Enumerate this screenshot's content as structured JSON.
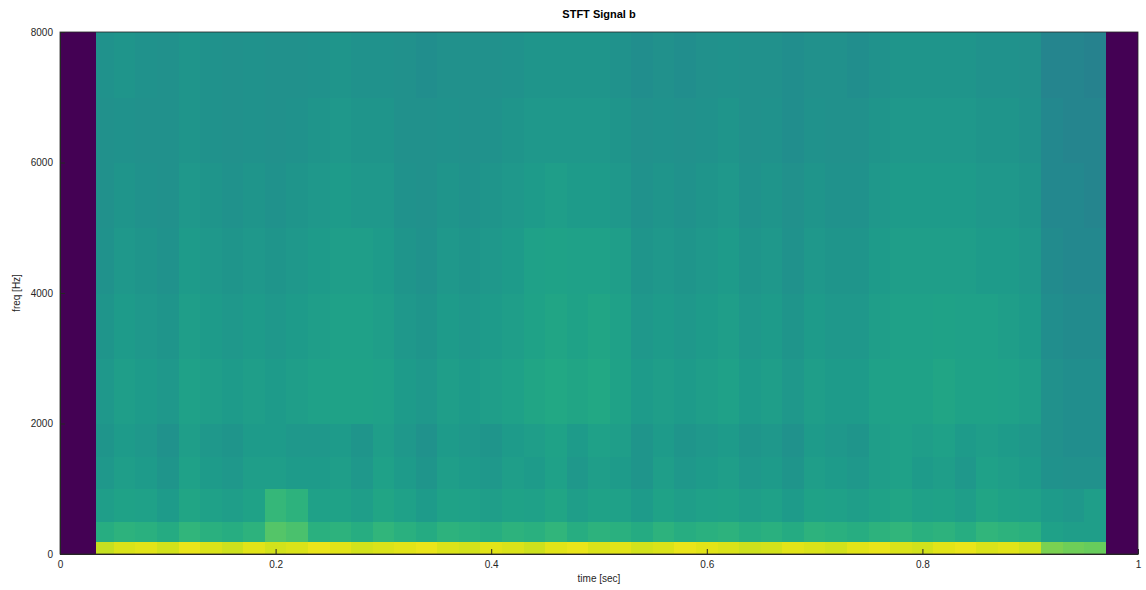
{
  "chart_data": {
    "type": "heatmap",
    "title": "STFT Signal b",
    "x_label": "time [sec]",
    "y_label": "freq [Hz]",
    "color": "viridis",
    "xlim": [
      0,
      1
    ],
    "ylim": [
      0,
      8000
    ],
    "xticks": [
      0,
      0.2,
      0.4,
      0.6,
      0.8,
      1
    ],
    "yticks": [
      0,
      2000,
      4000,
      6000,
      8000
    ],
    "zlim": [
      -100,
      -10
    ],
    "x_edges": [
      0,
      0.033,
      0.05,
      0.07,
      0.09,
      0.11,
      0.13,
      0.15,
      0.17,
      0.19,
      0.21,
      0.23,
      0.25,
      0.27,
      0.29,
      0.31,
      0.33,
      0.35,
      0.37,
      0.39,
      0.41,
      0.43,
      0.45,
      0.47,
      0.49,
      0.51,
      0.53,
      0.55,
      0.57,
      0.59,
      0.61,
      0.63,
      0.65,
      0.67,
      0.69,
      0.71,
      0.73,
      0.75,
      0.77,
      0.79,
      0.81,
      0.83,
      0.85,
      0.87,
      0.89,
      0.91,
      0.93,
      0.95,
      0.97,
      1
    ],
    "y_edges": [
      0,
      200,
      500,
      1000,
      1500,
      2000,
      3000,
      4000,
      5000,
      6000,
      7000,
      8000
    ],
    "cells": [
      [
        -100,
        -18,
        -15,
        -14,
        -16,
        -13,
        -15,
        -17,
        -14,
        -16,
        -15,
        -13,
        -14,
        -16,
        -15,
        -14,
        -13,
        -15,
        -16,
        -14,
        -15,
        -17,
        -14,
        -13,
        -15,
        -14,
        -16,
        -15,
        -13,
        -14,
        -15,
        -17,
        -16,
        -14,
        -15,
        -16,
        -14,
        -13,
        -15,
        -16,
        -14,
        -13,
        -15,
        -14,
        -16,
        -28,
        -30,
        -31,
        -100
      ],
      [
        -100,
        -44,
        -42,
        -43,
        -45,
        -41,
        -43,
        -44,
        -42,
        -34,
        -36,
        -43,
        -42,
        -44,
        -41,
        -43,
        -45,
        -42,
        -43,
        -44,
        -42,
        -43,
        -41,
        -44,
        -42,
        -43,
        -45,
        -42,
        -44,
        -43,
        -42,
        -44,
        -43,
        -45,
        -42,
        -43,
        -44,
        -42,
        -41,
        -43,
        -42,
        -44,
        -41,
        -42,
        -43,
        -49,
        -50,
        -50,
        -100
      ],
      [
        -100,
        -50,
        -48,
        -49,
        -51,
        -47,
        -49,
        -50,
        -48,
        -40,
        -42,
        -49,
        -48,
        -50,
        -47,
        -49,
        -51,
        -48,
        -49,
        -50,
        -48,
        -49,
        -47,
        -50,
        -48,
        -49,
        -51,
        -48,
        -50,
        -49,
        -48,
        -50,
        -49,
        -51,
        -48,
        -49,
        -50,
        -48,
        -47,
        -49,
        -48,
        -50,
        -47,
        -48,
        -49,
        -51,
        -52,
        -50,
        -100
      ],
      [
        -100,
        -52,
        -50,
        -51,
        -53,
        -49,
        -51,
        -52,
        -50,
        -50,
        -51,
        -51,
        -50,
        -52,
        -49,
        -51,
        -53,
        -50,
        -51,
        -52,
        -50,
        -51,
        -49,
        -52,
        -50,
        -51,
        -53,
        -50,
        -52,
        -51,
        -50,
        -52,
        -51,
        -53,
        -50,
        -51,
        -52,
        -50,
        -49,
        -51,
        -50,
        -52,
        -49,
        -50,
        -51,
        -54,
        -55,
        -55,
        -100
      ],
      [
        -100,
        -53,
        -51,
        -52,
        -54,
        -50,
        -52,
        -53,
        -51,
        -51,
        -52,
        -52,
        -51,
        -53,
        -50,
        -52,
        -54,
        -51,
        -52,
        -53,
        -51,
        -50,
        -48,
        -51,
        -49,
        -50,
        -53,
        -51,
        -53,
        -52,
        -51,
        -53,
        -52,
        -54,
        -51,
        -52,
        -53,
        -50,
        -49,
        -50,
        -49,
        -51,
        -50,
        -51,
        -52,
        -55,
        -56,
        -56,
        -100
      ],
      [
        -100,
        -52,
        -50,
        -51,
        -52,
        -49,
        -50,
        -51,
        -50,
        -51,
        -50,
        -49,
        -48,
        -48,
        -49,
        -51,
        -52,
        -50,
        -51,
        -50,
        -49,
        -47,
        -46,
        -47,
        -46,
        -48,
        -51,
        -50,
        -51,
        -50,
        -49,
        -51,
        -50,
        -52,
        -50,
        -51,
        -51,
        -49,
        -48,
        -48,
        -47,
        -48,
        -48,
        -49,
        -50,
        -55,
        -56,
        -56,
        -100
      ],
      [
        -100,
        -53,
        -51,
        -52,
        -53,
        -50,
        -51,
        -52,
        -51,
        -52,
        -51,
        -50,
        -49,
        -49,
        -50,
        -52,
        -53,
        -51,
        -52,
        -51,
        -50,
        -48,
        -47,
        -48,
        -47,
        -49,
        -52,
        -51,
        -52,
        -51,
        -50,
        -52,
        -51,
        -53,
        -51,
        -52,
        -52,
        -50,
        -49,
        -49,
        -48,
        -49,
        -49,
        -50,
        -51,
        -56,
        -57,
        -57,
        -100
      ],
      [
        -100,
        -54,
        -52,
        -53,
        -54,
        -51,
        -52,
        -53,
        -52,
        -53,
        -52,
        -51,
        -50,
        -50,
        -51,
        -53,
        -54,
        -52,
        -53,
        -52,
        -51,
        -49,
        -48,
        -49,
        -49,
        -50,
        -53,
        -52,
        -53,
        -52,
        -51,
        -53,
        -52,
        -54,
        -52,
        -53,
        -53,
        -51,
        -50,
        -50,
        -50,
        -50,
        -51,
        -51,
        -52,
        -57,
        -58,
        -58,
        -100
      ],
      [
        -100,
        -55,
        -53,
        -54,
        -55,
        -52,
        -53,
        -54,
        -53,
        -54,
        -53,
        -52,
        -51,
        -52,
        -52,
        -54,
        -55,
        -53,
        -54,
        -53,
        -52,
        -51,
        -50,
        -51,
        -51,
        -52,
        -54,
        -53,
        -54,
        -53,
        -52,
        -54,
        -53,
        -55,
        -53,
        -54,
        -54,
        -52,
        -51,
        -51,
        -51,
        -51,
        -52,
        -52,
        -53,
        -58,
        -58,
        -59,
        -100
      ],
      [
        -100,
        -55,
        -54,
        -55,
        -55,
        -53,
        -54,
        -55,
        -54,
        -55,
        -54,
        -53,
        -52,
        -53,
        -53,
        -55,
        -55,
        -54,
        -55,
        -54,
        -53,
        -52,
        -52,
        -52,
        -52,
        -53,
        -55,
        -54,
        -55,
        -54,
        -53,
        -55,
        -54,
        -56,
        -54,
        -55,
        -55,
        -53,
        -52,
        -52,
        -52,
        -52,
        -53,
        -53,
        -54,
        -58,
        -59,
        -59,
        -100
      ],
      [
        -100,
        -54,
        -53,
        -54,
        -55,
        -53,
        -54,
        -55,
        -54,
        -55,
        -55,
        -54,
        -53,
        -54,
        -54,
        -55,
        -56,
        -55,
        -55,
        -55,
        -54,
        -53,
        -53,
        -53,
        -53,
        -54,
        -56,
        -55,
        -56,
        -55,
        -54,
        -55,
        -55,
        -56,
        -55,
        -55,
        -56,
        -54,
        -53,
        -53,
        -53,
        -53,
        -54,
        -54,
        -55,
        -59,
        -59,
        -60,
        -100
      ]
    ]
  }
}
